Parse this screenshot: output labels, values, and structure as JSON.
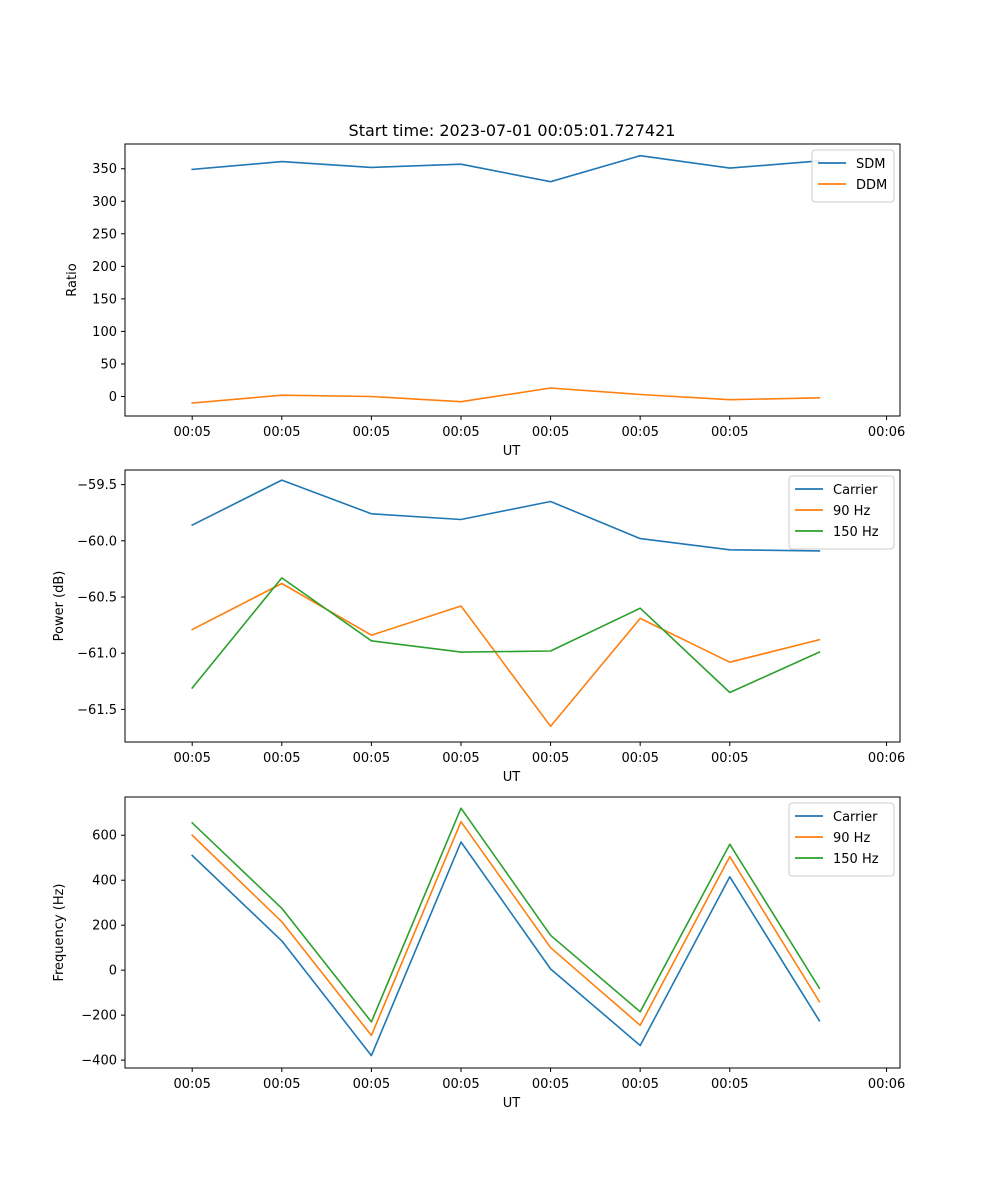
{
  "figure": {
    "title": "Start time: 2023-07-01 00:05:01.727421",
    "x_tick_labels": [
      "00:05",
      "00:05",
      "00:05",
      "00:05",
      "00:05",
      "00:05",
      "00:05",
      "00:06"
    ]
  },
  "colors": {
    "blue": "#1f77b4",
    "orange": "#ff7f0e",
    "green": "#2ca02c"
  },
  "chart_data": [
    {
      "type": "line",
      "title": "Start time: 2023-07-01 00:05:01.727421",
      "xlabel": "UT",
      "ylabel": "Ratio",
      "x": [
        1,
        2,
        3,
        4,
        5,
        6,
        7,
        8
      ],
      "xlim": [
        0.25,
        8.9
      ],
      "ylim": [
        -30,
        388
      ],
      "yticks": [
        0,
        50,
        100,
        150,
        200,
        250,
        300,
        350
      ],
      "ytick_labels": [
        "0",
        "50",
        "100",
        "150",
        "200",
        "250",
        "300",
        "350"
      ],
      "legend_position": "top-right",
      "series": [
        {
          "name": "SDM",
          "color": "#1f77b4",
          "values": [
            349,
            361,
            352,
            357,
            330,
            370,
            351,
            362
          ]
        },
        {
          "name": "DDM",
          "color": "#ff7f0e",
          "values": [
            -10,
            2,
            0,
            -8,
            13,
            3,
            -5,
            -2
          ]
        }
      ]
    },
    {
      "type": "line",
      "title": "",
      "xlabel": "UT",
      "ylabel": "Power (dB)",
      "x": [
        1,
        2,
        3,
        4,
        5,
        6,
        7,
        8
      ],
      "xlim": [
        0.25,
        8.9
      ],
      "ylim": [
        -61.79,
        -59.37
      ],
      "yticks": [
        -61.5,
        -61.0,
        -60.5,
        -60.0,
        -59.5
      ],
      "ytick_labels": [
        "−61.5",
        "−61.0",
        "−60.5",
        "−60.0",
        "−59.5"
      ],
      "legend_position": "top-right",
      "series": [
        {
          "name": "Carrier",
          "color": "#1f77b4",
          "values": [
            -59.86,
            -59.46,
            -59.76,
            -59.81,
            -59.65,
            -59.98,
            -60.08,
            -60.09
          ]
        },
        {
          "name": "90 Hz",
          "color": "#ff7f0e",
          "values": [
            -60.79,
            -60.38,
            -60.84,
            -60.58,
            -61.65,
            -60.69,
            -61.08,
            -60.88
          ]
        },
        {
          "name": "150 Hz",
          "color": "#2ca02c",
          "values": [
            -61.31,
            -60.33,
            -60.89,
            -60.99,
            -60.98,
            -60.6,
            -61.35,
            -60.99
          ]
        }
      ]
    },
    {
      "type": "line",
      "title": "",
      "xlabel": "UT",
      "ylabel": "Frequency (Hz)",
      "x": [
        1,
        2,
        3,
        4,
        5,
        6,
        7,
        8
      ],
      "xlim": [
        0.25,
        8.9
      ],
      "ylim": [
        -435,
        770
      ],
      "yticks": [
        -400,
        -200,
        0,
        200,
        400,
        600
      ],
      "ytick_labels": [
        "−400",
        "−200",
        "0",
        "200",
        "400",
        "600"
      ],
      "legend_position": "top-right",
      "series": [
        {
          "name": "Carrier",
          "color": "#1f77b4",
          "values": [
            510,
            130,
            -380,
            570,
            5,
            -335,
            415,
            -225
          ]
        },
        {
          "name": "90 Hz",
          "color": "#ff7f0e",
          "values": [
            600,
            215,
            -290,
            660,
            100,
            -245,
            505,
            -140
          ]
        },
        {
          "name": "150 Hz",
          "color": "#2ca02c",
          "values": [
            655,
            275,
            -230,
            720,
            155,
            -185,
            560,
            -80
          ]
        }
      ]
    }
  ]
}
